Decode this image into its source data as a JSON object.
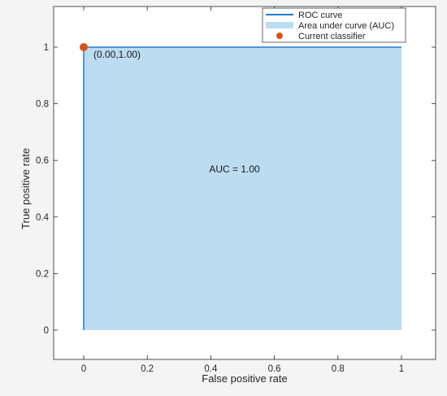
{
  "chart_data": {
    "type": "area",
    "xlabel": "False positive rate",
    "ylabel": "True positive rate",
    "xlim": [
      0,
      1
    ],
    "ylim": [
      0,
      1
    ],
    "xticks": [
      0,
      0.2,
      0.4,
      0.6,
      0.8,
      1
    ],
    "yticks": [
      0,
      0.2,
      0.4,
      0.6,
      0.8,
      1
    ],
    "xtick_labels": [
      "0",
      "0.2",
      "0.4",
      "0.6",
      "0.8",
      "1"
    ],
    "ytick_labels": [
      "0",
      "0.2",
      "0.4",
      "0.6",
      "0.8",
      "1"
    ],
    "grid": false,
    "legend_position": "top-right",
    "series": [
      {
        "name": "ROC curve",
        "kind": "line",
        "x": [
          0,
          0,
          1
        ],
        "y": [
          0,
          1,
          1
        ]
      },
      {
        "name": "Area under curve (AUC)",
        "kind": "area",
        "x": [
          0,
          0,
          1,
          1
        ],
        "y": [
          0,
          1,
          1,
          0
        ]
      },
      {
        "name": "Current classifier",
        "kind": "point",
        "x": [
          0
        ],
        "y": [
          1
        ]
      }
    ],
    "annotations": [
      {
        "text": "(0.00,1.00)",
        "x": 0,
        "y": 1
      },
      {
        "text": "AUC = 1.00",
        "x": 0.5,
        "y": 0.5
      }
    ],
    "colors": {
      "roc_line": "#1f7bd1",
      "auc_fill": "#bcdcf2",
      "point": "#d95319"
    }
  }
}
